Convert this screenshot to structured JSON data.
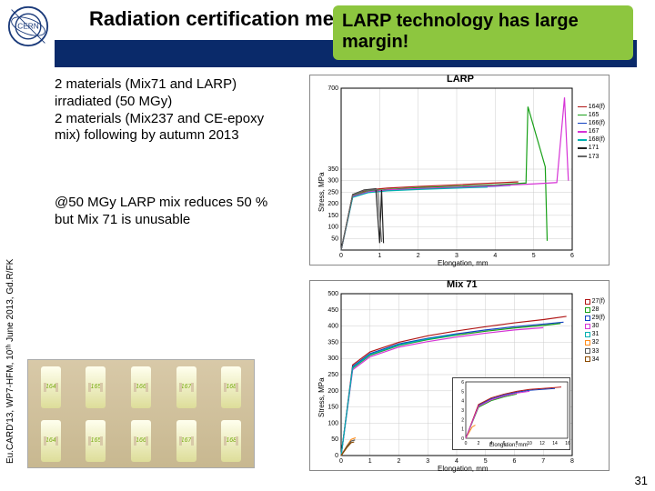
{
  "title": "Radiation certification mech",
  "callout": "LARP technology has large margin!",
  "side_credit": "Eu.CARD'13, WP7-HFM, 10ᵗʰ June 2013, Gd.R/FK",
  "para1": "2 materials (Mix71 and LARP) irradiated (50 MGy)\n2 materials (Mix237 and CE-epoxy mix) following by autumn 2013",
  "para2": "@50 MGy LARP mix reduces 50 %\nbut Mix 71 is unusable",
  "pagenum": "31",
  "samples_top": [
    "164",
    "165",
    "166",
    "167",
    "168"
  ],
  "samples_bot": [
    "164",
    "165",
    "166",
    "167",
    "168"
  ],
  "chart1": {
    "title": "LARP",
    "ylabel": "Stress, MPa",
    "xlabel": "Elongation, mm",
    "xlim": [
      0,
      6
    ],
    "ylim": [
      0,
      700
    ],
    "xtick": [
      0,
      1,
      2,
      3,
      4,
      5,
      6
    ],
    "ytick": [
      0,
      50,
      100,
      150,
      200,
      250,
      300,
      350,
      400,
      450,
      500,
      550,
      600,
      650,
      700
    ],
    "ytick_show": [
      50,
      100,
      150,
      200,
      250,
      300,
      350,
      700
    ],
    "bg": "#ffffff",
    "grid": "#cccccc",
    "series": [
      {
        "name": "164(f)",
        "color": "#b01515",
        "pts": [
          [
            0,
            0
          ],
          [
            0.3,
            240
          ],
          [
            0.7,
            260
          ],
          [
            1.2,
            268
          ],
          [
            2.0,
            275
          ],
          [
            3.0,
            282
          ],
          [
            4.0,
            290
          ],
          [
            4.6,
            295
          ]
        ]
      },
      {
        "name": "165",
        "color": "#18a018",
        "pts": [
          [
            0,
            0
          ],
          [
            0.3,
            235
          ],
          [
            0.7,
            255
          ],
          [
            1.2,
            262
          ],
          [
            2.0,
            270
          ],
          [
            3.0,
            276
          ],
          [
            4.0,
            282
          ],
          [
            4.8,
            290
          ],
          [
            4.85,
            620
          ],
          [
            5.3,
            360
          ],
          [
            5.35,
            40
          ]
        ]
      },
      {
        "name": "166(f)",
        "color": "#1040c0",
        "pts": [
          [
            0,
            0
          ],
          [
            0.3,
            230
          ],
          [
            0.7,
            250
          ],
          [
            1.2,
            258
          ],
          [
            2.0,
            264
          ],
          [
            3.0,
            270
          ],
          [
            4.0,
            276
          ],
          [
            4.4,
            280
          ]
        ]
      },
      {
        "name": "167",
        "color": "#d633d6",
        "pts": [
          [
            0,
            0
          ],
          [
            0.3,
            232
          ],
          [
            0.7,
            252
          ],
          [
            1.2,
            260
          ],
          [
            2.0,
            266
          ],
          [
            3.0,
            272
          ],
          [
            4.0,
            278
          ],
          [
            5.0,
            286
          ],
          [
            5.6,
            292
          ],
          [
            5.8,
            660
          ],
          [
            5.9,
            300
          ]
        ]
      },
      {
        "name": "168(f)",
        "color": "#00b0b0",
        "pts": [
          [
            0,
            0
          ],
          [
            0.3,
            228
          ],
          [
            0.7,
            248
          ],
          [
            1.2,
            256
          ],
          [
            2.0,
            262
          ],
          [
            3.0,
            268
          ],
          [
            3.8,
            272
          ]
        ]
      },
      {
        "name": "171",
        "color": "#222222",
        "pts": [
          [
            0,
            0
          ],
          [
            0.3,
            240
          ],
          [
            0.6,
            260
          ],
          [
            0.9,
            265
          ],
          [
            1.0,
            30
          ],
          [
            1.05,
            260
          ],
          [
            1.1,
            30
          ]
        ]
      },
      {
        "name": "173",
        "color": "#666666",
        "pts": [
          [
            0,
            0
          ],
          [
            0.3,
            238
          ],
          [
            0.6,
            258
          ],
          [
            0.95,
            262
          ],
          [
            1.05,
            35
          ]
        ]
      }
    ]
  },
  "chart2": {
    "title": "Mix 71",
    "ylabel": "Stress, MPa",
    "xlabel": "Elongation, mm",
    "xlim": [
      0,
      8
    ],
    "ylim": [
      0,
      500
    ],
    "xtick": [
      0,
      1,
      2,
      3,
      4,
      5,
      6,
      7,
      8
    ],
    "ytick": [
      0,
      50,
      100,
      150,
      200,
      250,
      300,
      350,
      400,
      450,
      500
    ],
    "bg": "#ffffff",
    "grid": "#cccccc",
    "series": [
      {
        "name": "27(f)",
        "color": "#b01515",
        "marker": "#b01515",
        "pts": [
          [
            0,
            0
          ],
          [
            0.4,
            280
          ],
          [
            1.0,
            320
          ],
          [
            2.0,
            350
          ],
          [
            3.0,
            370
          ],
          [
            4.0,
            385
          ],
          [
            5.0,
            398
          ],
          [
            6.0,
            410
          ],
          [
            7.0,
            420
          ],
          [
            7.8,
            430
          ]
        ]
      },
      {
        "name": "28",
        "color": "#18a018",
        "marker": "#18a018",
        "pts": [
          [
            0,
            0
          ],
          [
            0.4,
            270
          ],
          [
            1.0,
            310
          ],
          [
            2.0,
            340
          ],
          [
            3.0,
            358
          ],
          [
            4.0,
            372
          ],
          [
            5.0,
            384
          ],
          [
            6.0,
            394
          ],
          [
            7.0,
            402
          ],
          [
            7.6,
            408
          ]
        ]
      },
      {
        "name": "29(f)",
        "color": "#1040c0",
        "marker": "#1040c0",
        "pts": [
          [
            0,
            0
          ],
          [
            0.4,
            275
          ],
          [
            1.0,
            315
          ],
          [
            2.0,
            345
          ],
          [
            3.0,
            362
          ],
          [
            4.0,
            376
          ],
          [
            5.0,
            388
          ],
          [
            6.0,
            398
          ],
          [
            7.0,
            406
          ],
          [
            7.7,
            412
          ]
        ]
      },
      {
        "name": "30",
        "color": "#d633d6",
        "marker": "#d633d6",
        "pts": [
          [
            0,
            0
          ],
          [
            0.4,
            265
          ],
          [
            1.0,
            305
          ],
          [
            2.0,
            335
          ],
          [
            3.0,
            352
          ],
          [
            4.0,
            366
          ],
          [
            5.0,
            378
          ],
          [
            6.0,
            388
          ],
          [
            7.0,
            395
          ]
        ]
      },
      {
        "name": "31",
        "color": "#00b0b0",
        "marker": "#00b0b0",
        "pts": [
          [
            0,
            0
          ],
          [
            0.4,
            272
          ],
          [
            1.0,
            312
          ],
          [
            2.0,
            342
          ],
          [
            3.0,
            360
          ],
          [
            4.0,
            374
          ]
        ]
      },
      {
        "name": "32",
        "color": "#ff8c1a",
        "marker": "#ff8c1a",
        "pts": [
          [
            0,
            0
          ],
          [
            0.2,
            30
          ],
          [
            0.35,
            50
          ],
          [
            0.5,
            55
          ]
        ]
      },
      {
        "name": "33",
        "color": "#555555",
        "marker": "#555555",
        "pts": [
          [
            0,
            0
          ],
          [
            0.2,
            28
          ],
          [
            0.35,
            45
          ],
          [
            0.48,
            48
          ]
        ]
      },
      {
        "name": "34",
        "color": "#8a4a00",
        "marker": "#8a4a00",
        "pts": [
          [
            0,
            0
          ],
          [
            0.2,
            25
          ],
          [
            0.35,
            40
          ],
          [
            0.45,
            42
          ]
        ]
      }
    ],
    "inset": {
      "xlim": [
        0,
        16
      ],
      "ylim": [
        0,
        6
      ],
      "xlabel": "Elongation, mm",
      "series": [
        {
          "color": "#1040c0",
          "pts": [
            [
              0,
              0
            ],
            [
              2,
              3.5
            ],
            [
              4,
              4.2
            ],
            [
              6,
              4.6
            ],
            [
              8,
              4.9
            ],
            [
              10,
              5.1
            ],
            [
              12,
              5.2
            ],
            [
              14,
              5.3
            ]
          ]
        },
        {
          "color": "#ff8c1a",
          "pts": [
            [
              0,
              0
            ],
            [
              1,
              1.2
            ],
            [
              1.5,
              1.4
            ]
          ]
        },
        {
          "color": "#18a018",
          "pts": [
            [
              0,
              0
            ],
            [
              2,
              3.3
            ],
            [
              4,
              4.0
            ],
            [
              6,
              4.4
            ],
            [
              8,
              4.7
            ]
          ]
        },
        {
          "color": "#b01515",
          "pts": [
            [
              0,
              0
            ],
            [
              2,
              3.6
            ],
            [
              4,
              4.3
            ],
            [
              6,
              4.7
            ],
            [
              8,
              5.0
            ],
            [
              10,
              5.2
            ],
            [
              12,
              5.3
            ],
            [
              14,
              5.4
            ],
            [
              15,
              5.45
            ]
          ]
        },
        {
          "color": "#d633d6",
          "pts": [
            [
              0,
              0
            ],
            [
              2,
              3.4
            ],
            [
              4,
              4.1
            ],
            [
              6,
              4.5
            ],
            [
              8,
              4.8
            ],
            [
              10,
              5.0
            ]
          ]
        }
      ]
    }
  }
}
